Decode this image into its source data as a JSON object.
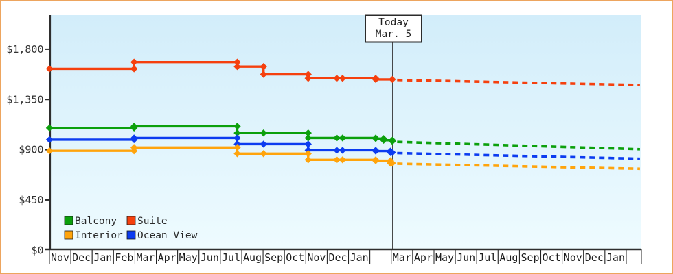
{
  "chart_data": {
    "type": "line",
    "title": "",
    "description": "Cruise cabin price history step chart with dashed price projection after today",
    "today_marker": {
      "line1": "Today",
      "line2": "Mar. 5",
      "month_index": 16.05
    },
    "y_axis": {
      "tick_values": [
        0,
        450,
        900,
        1350,
        1800
      ],
      "tick_labels": [
        "$0",
        "$450",
        "$900",
        "$1,350",
        "$1,800"
      ],
      "range": [
        0,
        2100
      ],
      "grid": false
    },
    "x_axis": {
      "note": "month index 0 = first Nov cell; one cell per month",
      "month_labels": [
        "Nov",
        "Dec",
        "Jan",
        "Feb",
        "Mar",
        "Apr",
        "May",
        "Jun",
        "Jul",
        "Aug",
        "Sep",
        "Oct",
        "Nov",
        "Dec",
        "Jan",
        "",
        "Mar",
        "Apr",
        "May",
        "Jun",
        "Jul",
        "Aug",
        "Sep",
        "Oct",
        "Nov",
        "Dec",
        "Jan",
        ""
      ]
    },
    "series": [
      {
        "name": "Suite",
        "color": "#f5400e",
        "points": [
          [
            0,
            1625
          ],
          [
            3.96,
            1685
          ],
          [
            8.79,
            1645
          ],
          [
            10.02,
            1575
          ],
          [
            12.11,
            1540
          ],
          [
            13.45,
            1540
          ],
          [
            13.72,
            1540
          ],
          [
            15.27,
            1530
          ],
          [
            16.05,
            1530
          ]
        ],
        "projection": {
          "from": [
            16.05,
            1525
          ],
          "to": [
            27.64,
            1480
          ]
        }
      },
      {
        "name": "Balcony",
        "color": "#0ca00c",
        "points": [
          [
            0,
            1095
          ],
          [
            3.96,
            1110
          ],
          [
            8.79,
            1050
          ],
          [
            10.02,
            1050
          ],
          [
            12.11,
            1005
          ],
          [
            13.45,
            1005
          ],
          [
            13.72,
            1005
          ],
          [
            15.27,
            1000
          ],
          [
            15.64,
            985
          ],
          [
            16.05,
            975
          ]
        ],
        "projection": {
          "from": [
            16.05,
            970
          ],
          "to": [
            27.64,
            905
          ]
        }
      },
      {
        "name": "Ocean View",
        "color": "#0c3cf0",
        "points": [
          [
            0,
            990
          ],
          [
            3.96,
            1005
          ],
          [
            8.79,
            950
          ],
          [
            10.02,
            950
          ],
          [
            12.11,
            895
          ],
          [
            13.45,
            895
          ],
          [
            13.72,
            895
          ],
          [
            15.27,
            888
          ],
          [
            15.96,
            875
          ],
          [
            16.05,
            875
          ]
        ],
        "projection": {
          "from": [
            16.05,
            870
          ],
          "to": [
            27.64,
            820
          ]
        }
      },
      {
        "name": "Interior",
        "color": "#ffa40c",
        "points": [
          [
            0,
            890
          ],
          [
            3.96,
            920
          ],
          [
            8.79,
            865
          ],
          [
            10.02,
            865
          ],
          [
            12.11,
            810
          ],
          [
            13.45,
            810
          ],
          [
            13.72,
            810
          ],
          [
            15.27,
            802
          ],
          [
            15.96,
            780
          ],
          [
            16.05,
            780
          ]
        ],
        "projection": {
          "from": [
            16.05,
            775
          ],
          "to": [
            27.64,
            730
          ]
        }
      }
    ],
    "legend": {
      "position": "bottom-left-inside-plot",
      "items": [
        {
          "label": "Balcony",
          "color": "#0ca00c"
        },
        {
          "label": "Suite",
          "color": "#f5400e"
        },
        {
          "label": "Interior",
          "color": "#ffa40c"
        },
        {
          "label": "Ocean View",
          "color": "#0c3cf0"
        }
      ]
    },
    "colors": {
      "frame_border": "#eda55e",
      "plot_bg_top": "#d2edfa",
      "plot_bg_bottom": "#eefbff",
      "axis": "#2e2e2e",
      "text": "#333333",
      "cell_border": "#222222",
      "today_line": "#3a3a3a"
    }
  }
}
